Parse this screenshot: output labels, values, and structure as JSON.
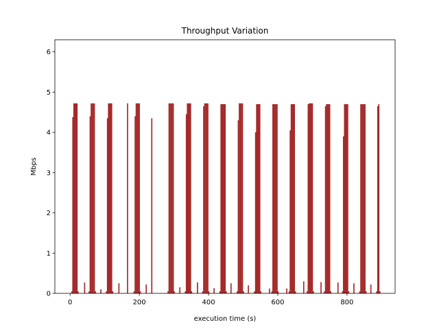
{
  "chart_data": {
    "type": "bar",
    "title": "Throughput Variation",
    "x_label": "execution time (s)",
    "y_label": "Mbps",
    "color": "#a52a2a",
    "xlim": [
      -44,
      939
    ],
    "xticks": [
      0,
      200,
      400,
      600,
      800
    ],
    "ylim": [
      0,
      6.3
    ],
    "yticks": [
      0,
      1,
      2,
      3,
      4,
      5,
      6
    ],
    "grid": false,
    "x": [
      5,
      8,
      11,
      14,
      17,
      20,
      23,
      42,
      55,
      58,
      61,
      64,
      67,
      70,
      73,
      89,
      105,
      108,
      111,
      114,
      117,
      120,
      123,
      141,
      166,
      185,
      188,
      191,
      194,
      197,
      200,
      203,
      220,
      236,
      283,
      286,
      289,
      292,
      295,
      298,
      301,
      317,
      333,
      336,
      339,
      342,
      345,
      348,
      351,
      368,
      383,
      386,
      389,
      392,
      395,
      398,
      401,
      416,
      433,
      436,
      439,
      442,
      445,
      448,
      451,
      465,
      483,
      486,
      489,
      492,
      495,
      498,
      501,
      515,
      533,
      536,
      539,
      542,
      545,
      548,
      551,
      576,
      583,
      586,
      589,
      592,
      595,
      598,
      601,
      626,
      633,
      636,
      639,
      642,
      645,
      648,
      651,
      675,
      685,
      688,
      691,
      694,
      697,
      700,
      703,
      725,
      735,
      738,
      741,
      744,
      747,
      750,
      753,
      774,
      787,
      790,
      793,
      796,
      799,
      802,
      805,
      820,
      837,
      840,
      843,
      846,
      849,
      852,
      855,
      869,
      886,
      889,
      892,
      895
    ],
    "values": [
      0.05,
      4.38,
      4.72,
      4.72,
      4.72,
      4.72,
      0.05,
      0.27,
      0.05,
      4.4,
      4.72,
      4.72,
      4.72,
      4.72,
      0.05,
      0.1,
      0.05,
      4.35,
      4.72,
      4.72,
      4.72,
      4.72,
      0.05,
      0.25,
      4.72,
      0.05,
      4.4,
      4.72,
      4.72,
      4.72,
      4.72,
      0.05,
      0.22,
      4.35,
      0.05,
      4.72,
      4.72,
      4.72,
      4.72,
      4.72,
      0.05,
      0.15,
      0.05,
      4.45,
      4.72,
      4.72,
      4.72,
      4.72,
      0.05,
      0.27,
      0.05,
      4.65,
      4.72,
      4.72,
      4.72,
      4.72,
      0.05,
      0.13,
      0.05,
      4.7,
      4.7,
      4.7,
      4.7,
      4.7,
      0.05,
      0.25,
      0.05,
      4.3,
      4.72,
      4.72,
      4.72,
      4.72,
      0.05,
      0.2,
      0.05,
      4.0,
      4.7,
      4.7,
      4.7,
      4.7,
      0.05,
      0.12,
      0.05,
      4.7,
      4.7,
      4.7,
      4.7,
      4.7,
      0.05,
      0.12,
      0.05,
      4.05,
      4.7,
      4.7,
      4.7,
      4.7,
      0.05,
      0.3,
      0.05,
      4.7,
      4.72,
      4.72,
      4.72,
      4.72,
      0.05,
      0.28,
      0.05,
      4.65,
      4.7,
      4.7,
      4.7,
      4.7,
      0.05,
      0.27,
      0.05,
      3.9,
      4.7,
      4.7,
      4.7,
      4.7,
      0.05,
      0.25,
      0.05,
      4.7,
      4.7,
      4.7,
      4.7,
      4.7,
      0.05,
      0.22,
      0.05,
      4.65,
      4.7,
      0.05
    ]
  }
}
